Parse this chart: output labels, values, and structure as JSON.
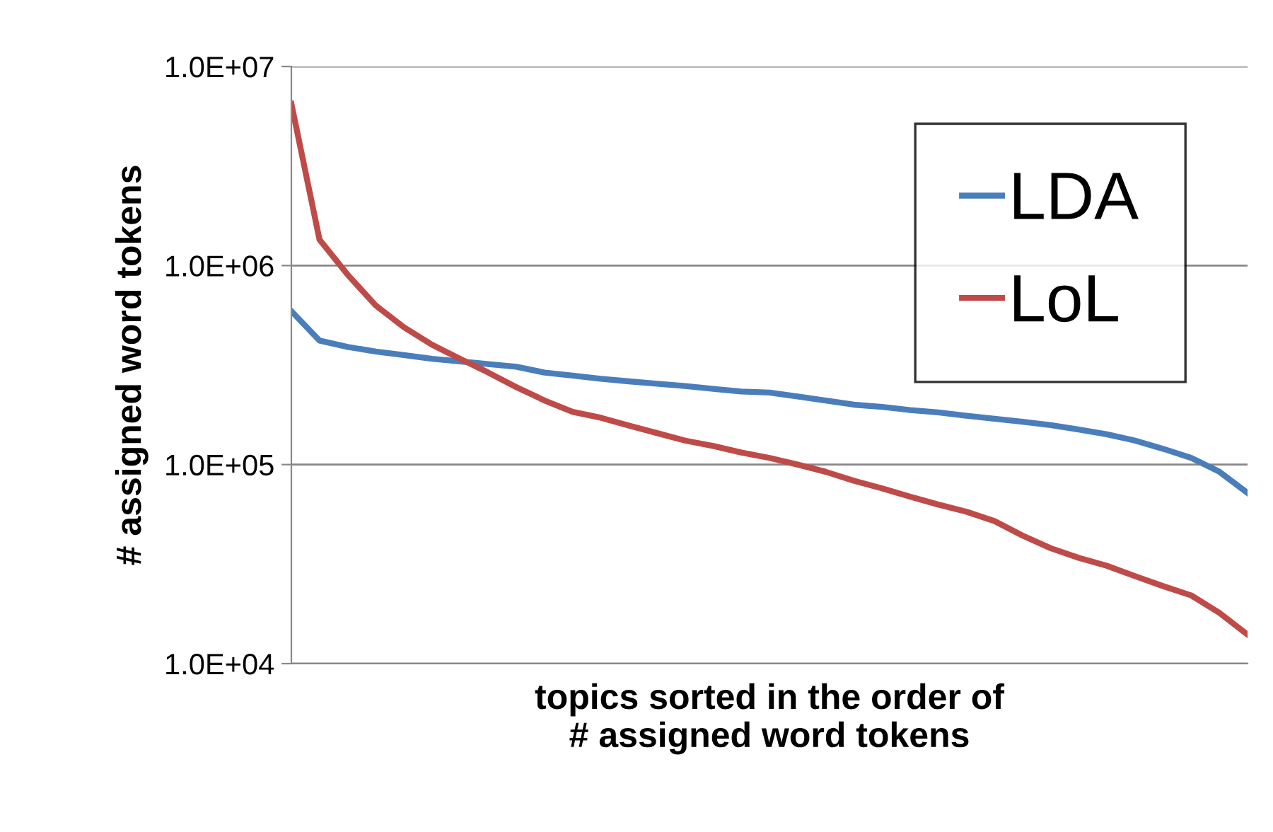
{
  "chart_data": {
    "type": "line",
    "xlabel": "topics sorted in the order of\n# assigned word tokens",
    "ylabel": "# assigned word tokens",
    "categories": [
      null,
      null,
      null,
      null,
      null,
      null,
      null,
      null,
      null,
      null,
      null,
      null,
      null,
      null,
      null,
      null,
      null,
      null,
      null,
      null,
      null,
      null,
      null,
      null,
      null,
      null,
      null,
      null,
      null,
      null,
      null,
      null,
      null,
      null,
      null
    ],
    "series": [
      {
        "name": "LDA",
        "color": "#4a7ebb",
        "values": [
          590000,
          420000,
          390000,
          370000,
          355000,
          340000,
          330000,
          320000,
          310000,
          290000,
          280000,
          270000,
          262000,
          255000,
          248000,
          240000,
          233000,
          230000,
          220000,
          210000,
          200000,
          195000,
          188000,
          183000,
          176000,
          170000,
          164000,
          158000,
          150000,
          142000,
          132000,
          120000,
          108000,
          92000,
          72000
        ]
      },
      {
        "name": "LoL",
        "color": "#be4b48",
        "values": [
          6500000,
          1350000,
          900000,
          630000,
          490000,
          400000,
          340000,
          290000,
          245000,
          210000,
          184000,
          172000,
          157000,
          144000,
          132000,
          124000,
          115000,
          108000,
          100000,
          92000,
          83000,
          76000,
          69000,
          63000,
          58000,
          52000,
          44000,
          38000,
          34000,
          31000,
          27500,
          24500,
          22000,
          18000,
          14000
        ]
      }
    ],
    "log": "y",
    "ylim": [
      10000,
      10000000
    ],
    "yticks": [
      {
        "value": 10000,
        "label": "1.0E+04"
      },
      {
        "value": 100000,
        "label": "1.0E+05"
      },
      {
        "value": 1000000,
        "label": "1.0E+06"
      },
      {
        "value": 10000000,
        "label": "1.0E+07"
      }
    ],
    "grid": "y",
    "legend": "top right",
    "tick_labels": "y",
    "marker": "none",
    "line_style": "solid"
  }
}
